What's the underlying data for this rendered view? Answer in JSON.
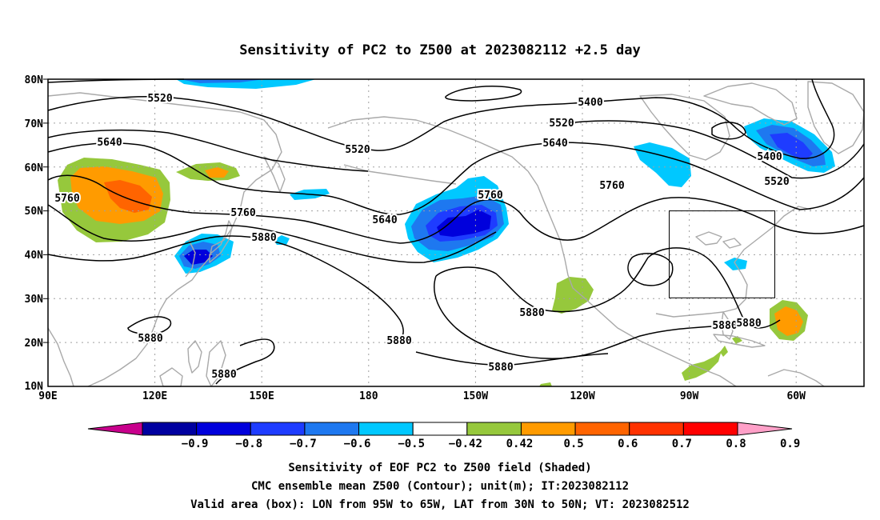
{
  "title": "Sensitivity of PC2 to Z500 at 2023082112 +2.5 day",
  "axes": {
    "lat_ticks": [
      "80N",
      "70N",
      "60N",
      "50N",
      "40N",
      "30N",
      "20N",
      "10N"
    ],
    "lon_ticks": [
      "90E",
      "120E",
      "150E",
      "180",
      "150W",
      "120W",
      "90W",
      "60W"
    ]
  },
  "contour_labels": [
    {
      "id": "c1",
      "text": "5520"
    },
    {
      "id": "c2",
      "text": "5400"
    },
    {
      "id": "c3",
      "text": "5520"
    },
    {
      "id": "c4",
      "text": "5520"
    },
    {
      "id": "c5",
      "text": "5640"
    },
    {
      "id": "c6",
      "text": "5640"
    },
    {
      "id": "c7",
      "text": "5400"
    },
    {
      "id": "c8",
      "text": "5520"
    },
    {
      "id": "c9",
      "text": "5760"
    },
    {
      "id": "c10",
      "text": "5760"
    },
    {
      "id": "c11",
      "text": "5760"
    },
    {
      "id": "c12",
      "text": "5640"
    },
    {
      "id": "c13",
      "text": "5760"
    },
    {
      "id": "c14",
      "text": "5880"
    },
    {
      "id": "c15",
      "text": "5880"
    },
    {
      "id": "c16",
      "text": "5880"
    },
    {
      "id": "c17",
      "text": "5880"
    },
    {
      "id": "c18",
      "text": "5880"
    },
    {
      "id": "c19",
      "text": "5880"
    },
    {
      "id": "c20",
      "text": "5880"
    },
    {
      "id": "c21",
      "text": "5880"
    }
  ],
  "colorbar": {
    "labels": [
      "−0.9",
      "−0.8",
      "−0.7",
      "−0.6",
      "−0.5",
      "−0.42",
      "0.42",
      "0.5",
      "0.6",
      "0.7",
      "0.8",
      "0.9"
    ],
    "colors": [
      "#c8008c",
      "#0000a0",
      "#0000dc",
      "#1e3cff",
      "#1e78f0",
      "#00c8ff",
      "#ffffff",
      "#96c83c",
      "#ff9b00",
      "#ff6400",
      "#ff3200",
      "#ff0000",
      "#ffa0c8"
    ]
  },
  "captions": [
    "Sensitivity of EOF PC2 to Z500 field (Shaded)",
    "CMC ensemble mean Z500 (Contour); unit(m); IT:2023082112",
    "Valid area (box): LON from 95W to 65W, LAT from 30N to 50N; VT: 2023082512"
  ]
}
